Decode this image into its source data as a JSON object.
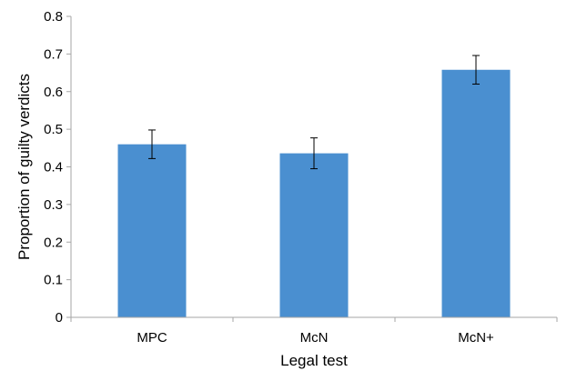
{
  "chart_data": {
    "type": "bar",
    "title": "",
    "xlabel": "Legal test",
    "ylabel": "Proportion of guilty verdicts",
    "categories": [
      "MPC",
      "McN",
      "McN+"
    ],
    "values": [
      0.46,
      0.436,
      0.658
    ],
    "error": [
      0.038,
      0.041,
      0.038
    ],
    "ylim": [
      0,
      0.8
    ],
    "yticks": [
      "0",
      "0.1",
      "0.2",
      "0.3",
      "0.4",
      "0.5",
      "0.6",
      "0.7",
      "0.8"
    ],
    "grid": false,
    "bar_color": "#4a8fd0",
    "error_bar_color": "#000000",
    "axis_color": "#a6a6a6"
  }
}
